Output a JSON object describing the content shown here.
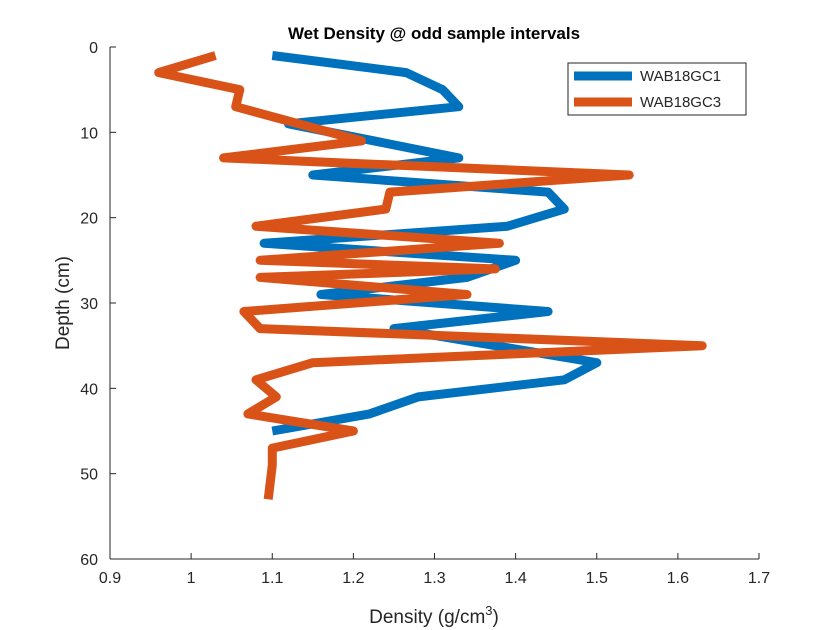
{
  "chart_data": {
    "type": "line",
    "title": "Wet Density @ odd sample intervals",
    "xlabel": "Density (g/cm",
    "xlabel_superscript": "3",
    "xlabel_suffix": ")",
    "ylabel": "Depth (cm)",
    "xlim": [
      0.9,
      1.7
    ],
    "ylim": [
      0,
      60
    ],
    "y_reversed": true,
    "xticks": [
      0.9,
      1.0,
      1.1,
      1.2,
      1.3,
      1.4,
      1.5,
      1.6,
      1.7
    ],
    "xtick_labels": [
      "0.9",
      "1",
      "1.1",
      "1.2",
      "1.3",
      "1.4",
      "1.5",
      "1.6",
      "1.7"
    ],
    "yticks": [
      0,
      10,
      20,
      30,
      40,
      50,
      60
    ],
    "ytick_labels": [
      "0",
      "10",
      "20",
      "30",
      "40",
      "50",
      "60"
    ],
    "grid": false,
    "legend_position": "top-right",
    "series": [
      {
        "name": "WAB18GC1",
        "color": "#0072BD",
        "x": [
          1.1,
          1.265,
          1.31,
          1.33,
          1.12,
          1.33,
          1.15,
          1.44,
          1.46,
          1.39,
          1.09,
          1.4,
          1.34,
          1.16,
          1.44,
          1.25,
          1.5,
          1.46,
          1.28,
          1.22,
          1.1
        ],
        "y": [
          1,
          3,
          5,
          7,
          9,
          13,
          15,
          17,
          19,
          21,
          23,
          25,
          27,
          29,
          31,
          33,
          37,
          39,
          41,
          43,
          45
        ]
      },
      {
        "name": "WAB18GC3",
        "color": "#D95319",
        "x": [
          1.03,
          0.96,
          1.06,
          1.055,
          1.21,
          1.04,
          1.54,
          1.245,
          1.24,
          1.08,
          1.38,
          1.085,
          1.375,
          1.085,
          1.34,
          1.065,
          1.085,
          1.63,
          1.15,
          1.08,
          1.105,
          1.07,
          1.2,
          1.1,
          1.1,
          1.095
        ],
        "y": [
          1,
          3,
          5,
          7,
          11,
          13,
          15,
          17,
          19,
          21,
          23,
          25,
          26,
          27,
          29,
          31,
          33,
          35,
          37,
          39,
          41,
          43,
          45,
          47,
          49,
          53
        ]
      }
    ]
  }
}
